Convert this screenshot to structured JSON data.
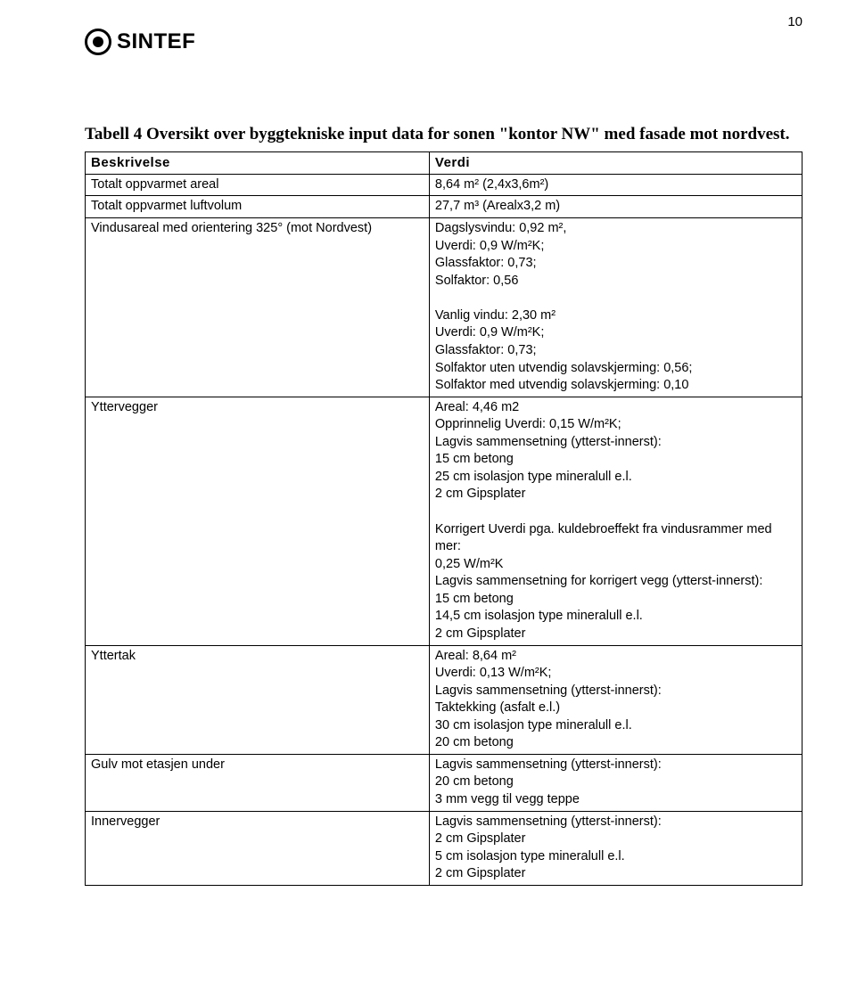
{
  "page_number": "10",
  "logo_text": "SINTEF",
  "title": "Tabell 4 Oversikt over byggtekniske input data for sonen \"kontor NW\" med fasade mot nordvest.",
  "header": {
    "left": "Beskrivelse",
    "right": "Verdi"
  },
  "rows": [
    {
      "left": "Totalt oppvarmet areal",
      "right": "8,64 m² (2,4x3,6m²)"
    },
    {
      "left": "Totalt oppvarmet luftvolum",
      "right": "27,7 m³ (Arealx3,2 m)"
    },
    {
      "left": "Vindusareal med orientering 325° (mot Nordvest)",
      "right": "Dagslysvindu: 0,92 m²,\nUverdi: 0,9 W/m²K;\nGlassfaktor: 0,73;\nSolfaktor: 0,56\n\nVanlig vindu: 2,30 m²\nUverdi: 0,9 W/m²K;\nGlassfaktor: 0,73;\nSolfaktor uten utvendig solavskjerming: 0,56;\nSolfaktor med utvendig solavskjerming: 0,10"
    },
    {
      "left": "Yttervegger",
      "right": "Areal: 4,46 m2\nOpprinnelig Uverdi: 0,15 W/m²K;\nLagvis sammensetning (ytterst-innerst):\n15 cm betong\n25 cm isolasjon type mineralull e.l.\n2 cm Gipsplater\n\nKorrigert Uverdi pga. kuldebroeffekt fra vindusrammer med mer:\n0,25 W/m²K\nLagvis sammensetning for korrigert vegg (ytterst-innerst):\n15 cm betong\n14,5 cm isolasjon type mineralull e.l.\n2 cm Gipsplater"
    },
    {
      "left": "Yttertak",
      "right": "Areal: 8,64 m²\nUverdi: 0,13 W/m²K;\nLagvis sammensetning (ytterst-innerst):\nTaktekking (asfalt e.l.)\n30 cm isolasjon type mineralull e.l.\n20 cm betong"
    },
    {
      "left": "Gulv mot etasjen under",
      "right": "Lagvis sammensetning (ytterst-innerst):\n20 cm betong\n3 mm vegg til vegg teppe"
    },
    {
      "left": "Innervegger",
      "right": "Lagvis sammensetning (ytterst-innerst):\n2 cm Gipsplater\n5 cm isolasjon type mineralull e.l.\n2 cm Gipsplater"
    }
  ]
}
